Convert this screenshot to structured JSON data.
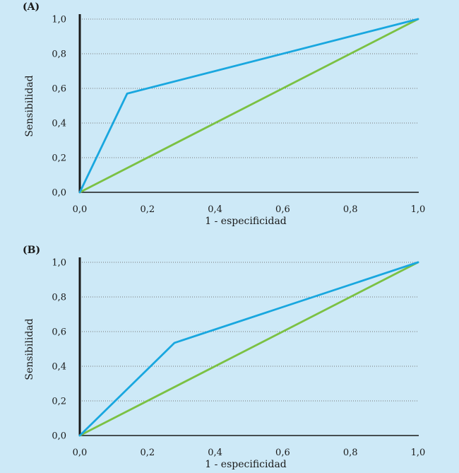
{
  "colors": {
    "background": "#cde9f7",
    "roc_curve": "#19a7df",
    "reference_line": "#7bc143",
    "axis": "#1a1a1a",
    "grid": "#777777"
  },
  "chart_data": [
    {
      "type": "line",
      "panel_label": "(A)",
      "xlabel": "1 - especificidad",
      "ylabel": "Sensibilidad",
      "xlim": [
        0,
        1
      ],
      "ylim": [
        0,
        1
      ],
      "x_ticks": [
        "0,0",
        "0,2",
        "0,4",
        "0,6",
        "0,8",
        "1,0"
      ],
      "y_ticks": [
        "0,0",
        "0,2",
        "0,4",
        "0,6",
        "0,8",
        "1,0"
      ],
      "grid": "horizontal-dotted",
      "series": [
        {
          "name": "ROC",
          "x": [
            0,
            0.14,
            1
          ],
          "y": [
            0,
            0.57,
            1
          ]
        },
        {
          "name": "Referencia",
          "x": [
            0,
            1
          ],
          "y": [
            0,
            1
          ]
        }
      ]
    },
    {
      "type": "line",
      "panel_label": "(B)",
      "xlabel": "1 - especificidad",
      "ylabel": "Sensibilidad",
      "xlim": [
        0,
        1
      ],
      "ylim": [
        0,
        1
      ],
      "x_ticks": [
        "0,0",
        "0,2",
        "0,4",
        "0,6",
        "0,8",
        "1,0"
      ],
      "y_ticks": [
        "0,0",
        "0,2",
        "0,4",
        "0,6",
        "0,8",
        "1,0"
      ],
      "grid": "horizontal-dotted",
      "series": [
        {
          "name": "ROC",
          "x": [
            0,
            0.28,
            1
          ],
          "y": [
            0,
            0.535,
            1
          ]
        },
        {
          "name": "Referencia",
          "x": [
            0,
            1
          ],
          "y": [
            0,
            1
          ]
        }
      ]
    }
  ]
}
